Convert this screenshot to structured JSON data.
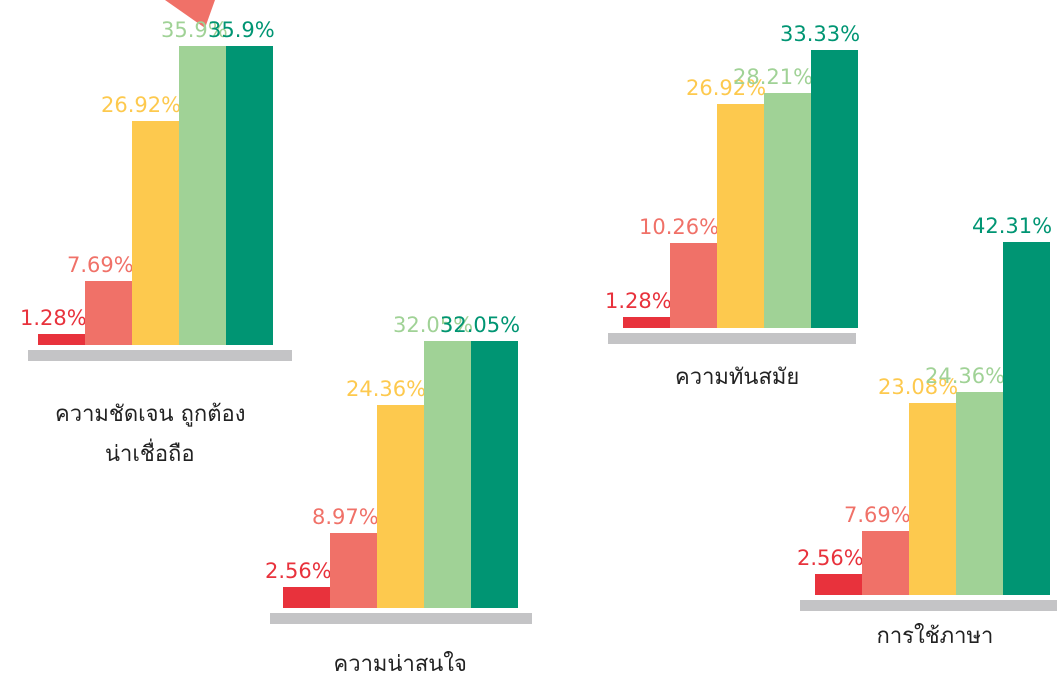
{
  "chart_data": [
    {
      "type": "bar",
      "title": [
        "ความชัดเจน ถูกต้อง",
        "น่าเชื่อถือ"
      ],
      "colors": [
        "#e8323c",
        "#f07168",
        "#fdc94e",
        "#a0d296",
        "#009573"
      ],
      "values": [
        1.28,
        7.69,
        26.92,
        35.9,
        35.9
      ],
      "value_labels": [
        "1.28%",
        "7.69%",
        "26.92%",
        "35.9%",
        "35.9%"
      ],
      "ylim": [
        0,
        45
      ]
    },
    {
      "type": "bar",
      "title": [
        "ความน่าสนใจ"
      ],
      "colors": [
        "#e8323c",
        "#f07168",
        "#fdc94e",
        "#a0d296",
        "#009573"
      ],
      "values": [
        2.56,
        8.97,
        24.36,
        32.05,
        32.05
      ],
      "value_labels": [
        "2.56%",
        "8.97%",
        "24.36%",
        "32.05%",
        "32.05%"
      ],
      "ylim": [
        0,
        45
      ]
    },
    {
      "type": "bar",
      "title": [
        "ความทันสมัย"
      ],
      "colors": [
        "#e8323c",
        "#f07168",
        "#fdc94e",
        "#a0d296",
        "#009573"
      ],
      "values": [
        1.28,
        10.26,
        26.92,
        28.21,
        33.33
      ],
      "value_labels": [
        "1.28%",
        "10.26%",
        "26.92%",
        "28.21%",
        "33.33%"
      ],
      "ylim": [
        0,
        45
      ]
    },
    {
      "type": "bar",
      "title": [
        "การใช้ภาษา"
      ],
      "colors": [
        "#e8323c",
        "#f07168",
        "#fdc94e",
        "#a0d296",
        "#009573"
      ],
      "values": [
        2.56,
        7.69,
        23.08,
        24.36,
        42.31
      ],
      "value_labels": [
        "2.56%",
        "7.69%",
        "23.08%",
        "24.36%",
        "42.31%"
      ],
      "ylim": [
        0,
        45
      ]
    }
  ]
}
